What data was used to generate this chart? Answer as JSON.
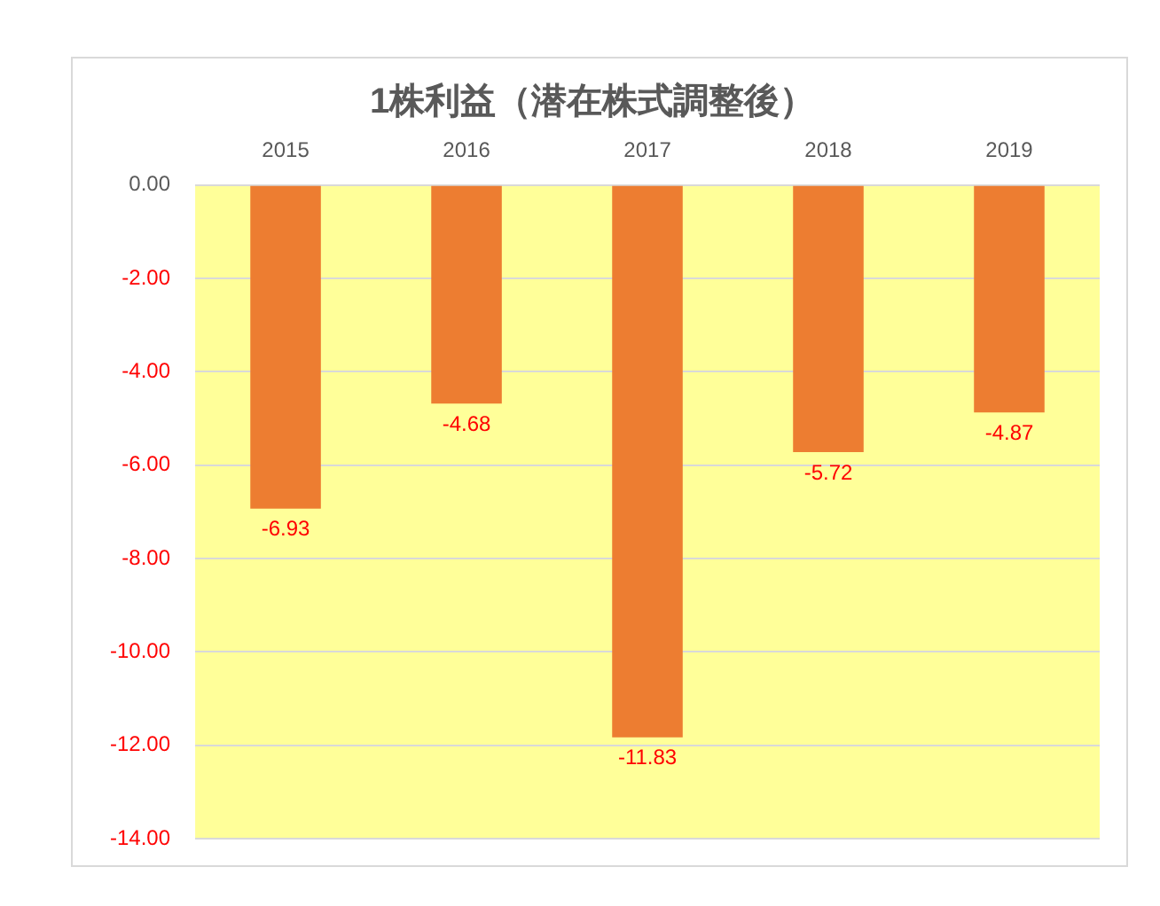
{
  "chart_data": {
    "type": "bar",
    "title": "1株利益（潜在株式調整後）",
    "categories": [
      "2015",
      "2016",
      "2017",
      "2018",
      "2019"
    ],
    "values": [
      -6.93,
      -4.68,
      -11.83,
      -5.72,
      -4.87
    ],
    "color": "#ed7d31",
    "ylim": [
      -14,
      0
    ],
    "yticks": [
      {
        "value": 0,
        "label": "0.00"
      },
      {
        "value": -2,
        "label": "-2.00"
      },
      {
        "value": -4,
        "label": "-4.00"
      },
      {
        "value": -6,
        "label": "-6.00"
      },
      {
        "value": -8,
        "label": "-8.00"
      },
      {
        "value": -10,
        "label": "-10.00"
      },
      {
        "value": -12,
        "label": "-12.00"
      },
      {
        "value": -14,
        "label": "-14.00"
      }
    ],
    "grid": "y",
    "data_labels": true,
    "legend": false
  }
}
